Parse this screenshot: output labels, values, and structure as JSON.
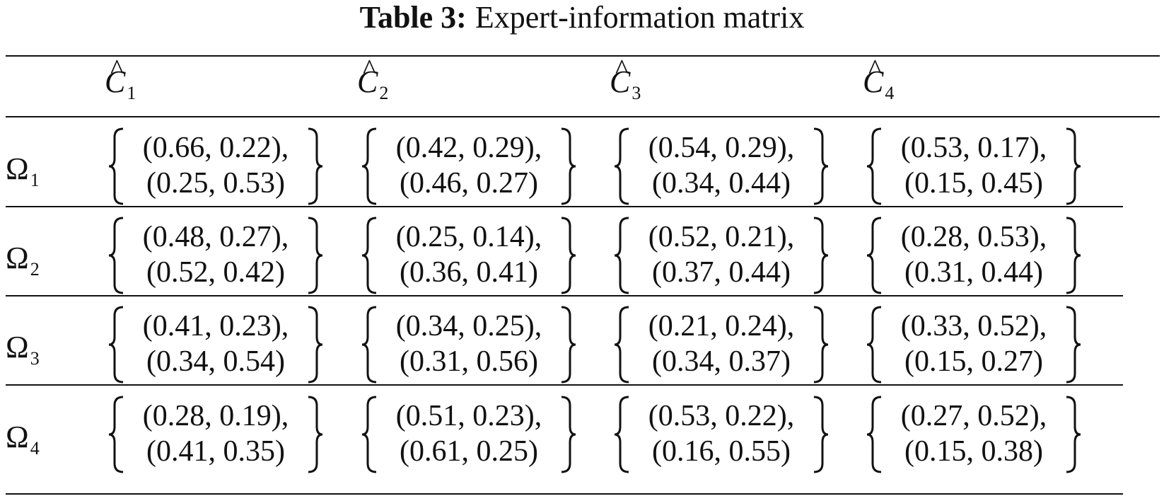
{
  "caption": {
    "label": "Table 3:",
    "text": "Expert-information matrix"
  },
  "columns": [
    {
      "symbol": "C",
      "hat": "^",
      "sub": "1"
    },
    {
      "symbol": "C",
      "hat": "^",
      "sub": "2"
    },
    {
      "symbol": "C",
      "hat": "^",
      "sub": "3"
    },
    {
      "symbol": "C",
      "hat": "^",
      "sub": "4"
    }
  ],
  "rows": [
    {
      "symbol": "Ω",
      "sub": "1",
      "cells": [
        [
          "(0.66, 0.22),",
          "(0.25, 0.53)"
        ],
        [
          "(0.42, 0.29),",
          "(0.46, 0.27)"
        ],
        [
          "(0.54, 0.29),",
          "(0.34, 0.44)"
        ],
        [
          "(0.53, 0.17),",
          "(0.15, 0.45)"
        ]
      ]
    },
    {
      "symbol": "Ω",
      "sub": "2",
      "cells": [
        [
          "(0.48, 0.27),",
          "(0.52, 0.42)"
        ],
        [
          "(0.25, 0.14),",
          "(0.36, 0.41)"
        ],
        [
          "(0.52, 0.21),",
          "(0.37, 0.44)"
        ],
        [
          "(0.28, 0.53),",
          "(0.31, 0.44)"
        ]
      ]
    },
    {
      "symbol": "Ω",
      "sub": "3",
      "cells": [
        [
          "(0.41, 0.23),",
          "(0.34, 0.54)"
        ],
        [
          "(0.34, 0.25),",
          "(0.31, 0.56)"
        ],
        [
          "(0.21, 0.24),",
          "(0.34, 0.37)"
        ],
        [
          "(0.33, 0.52),",
          "(0.15, 0.27)"
        ]
      ]
    },
    {
      "symbol": "Ω",
      "sub": "4",
      "cells": [
        [
          "(0.28, 0.19),",
          "(0.41, 0.35)"
        ],
        [
          "(0.51, 0.23),",
          "(0.61, 0.25)"
        ],
        [
          "(0.53, 0.22),",
          "(0.16, 0.55)"
        ],
        [
          "(0.27, 0.52),",
          "(0.15, 0.38)"
        ]
      ]
    }
  ]
}
